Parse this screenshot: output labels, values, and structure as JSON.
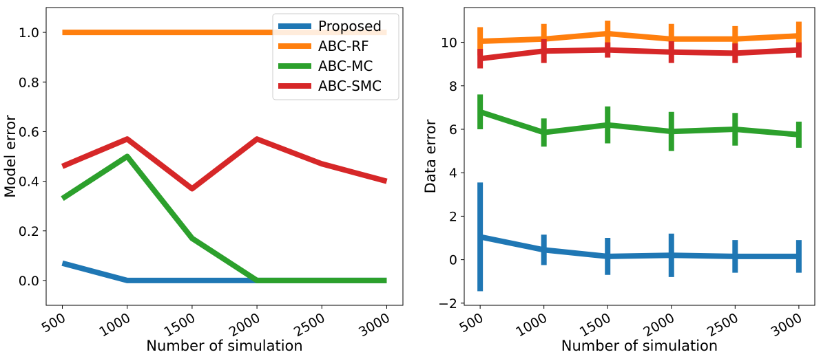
{
  "colors": {
    "Proposed": "#1f77b4",
    "ABC-RF": "#ff7f0e",
    "ABC-MC": "#2ca02c",
    "ABC-SMC": "#d62728"
  },
  "chart_data": [
    {
      "type": "line",
      "xlabel": "Number of simulation",
      "ylabel": "Model error",
      "x": [
        500,
        1000,
        1500,
        2000,
        2500,
        3000
      ],
      "xticks": [
        "500",
        "1000",
        "1500",
        "2000",
        "2500",
        "3000"
      ],
      "yticks": [
        "0.0",
        "0.2",
        "0.4",
        "0.6",
        "0.8",
        "1.0"
      ],
      "ytick_values": [
        0.0,
        0.2,
        0.4,
        0.6,
        0.8,
        1.0
      ],
      "ylim": [
        -0.1,
        1.1
      ],
      "grid": false,
      "legend": "top-right",
      "series": [
        {
          "name": "Proposed",
          "values": [
            0.07,
            0.0,
            0.0,
            0.0,
            0.0,
            0.0
          ]
        },
        {
          "name": "ABC-RF",
          "values": [
            1.0,
            1.0,
            1.0,
            1.0,
            1.0,
            1.0
          ]
        },
        {
          "name": "ABC-MC",
          "values": [
            0.33,
            0.5,
            0.17,
            0.0,
            0.0,
            0.0
          ]
        },
        {
          "name": "ABC-SMC",
          "values": [
            0.46,
            0.57,
            0.37,
            0.57,
            0.47,
            0.4
          ]
        }
      ]
    },
    {
      "type": "line",
      "xlabel": "Number of simulation",
      "ylabel": "Data error",
      "x": [
        500,
        1000,
        1500,
        2000,
        2500,
        3000
      ],
      "xticks": [
        "500",
        "1000",
        "1500",
        "2000",
        "2500",
        "3000"
      ],
      "yticks": [
        "−2",
        "0",
        "2",
        "4",
        "6",
        "8",
        "10"
      ],
      "ytick_values": [
        -2,
        0,
        2,
        4,
        6,
        8,
        10
      ],
      "ylim": [
        -2.1,
        11.6
      ],
      "grid": false,
      "error_bars": true,
      "series": [
        {
          "name": "Proposed",
          "values": [
            1.05,
            0.45,
            0.15,
            0.2,
            0.15,
            0.15
          ],
          "errors": [
            2.5,
            0.7,
            0.85,
            1.0,
            0.75,
            0.75
          ]
        },
        {
          "name": "ABC-RF",
          "values": [
            10.05,
            10.15,
            10.4,
            10.15,
            10.15,
            10.3
          ],
          "errors": [
            0.65,
            0.7,
            0.6,
            0.7,
            0.6,
            0.65
          ]
        },
        {
          "name": "ABC-MC",
          "values": [
            6.8,
            5.85,
            6.2,
            5.9,
            6.0,
            5.75
          ],
          "errors": [
            0.8,
            0.65,
            0.85,
            0.9,
            0.75,
            0.6
          ]
        },
        {
          "name": "ABC-SMC",
          "values": [
            9.25,
            9.6,
            9.65,
            9.55,
            9.5,
            9.65
          ],
          "errors": [
            0.45,
            0.55,
            0.35,
            0.5,
            0.45,
            0.35
          ]
        }
      ]
    }
  ]
}
